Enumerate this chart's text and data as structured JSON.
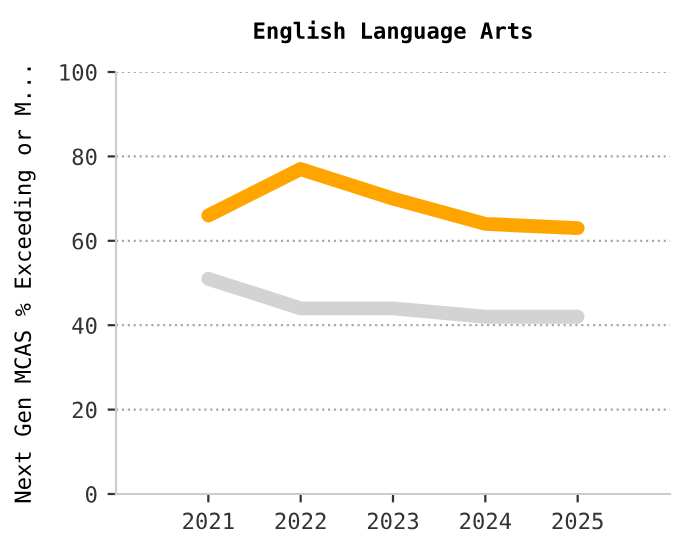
{
  "chart_data": {
    "type": "line",
    "title": "English Language Arts",
    "ylabel": "Next Gen MCAS % Exceeding or M...",
    "categories": [
      "2021",
      "2022",
      "2023",
      "2024",
      "2025"
    ],
    "series": [
      {
        "color": "#ffa500",
        "values": [
          66,
          77,
          70,
          64,
          63
        ]
      },
      {
        "color": "#d3d3d3",
        "values": [
          51,
          44,
          44,
          42,
          42
        ]
      }
    ],
    "ylim": [
      0,
      100
    ],
    "yticks": [
      0,
      20,
      40,
      60,
      80,
      100
    ],
    "grid": "y",
    "marker": "none",
    "line_style": "solid"
  }
}
